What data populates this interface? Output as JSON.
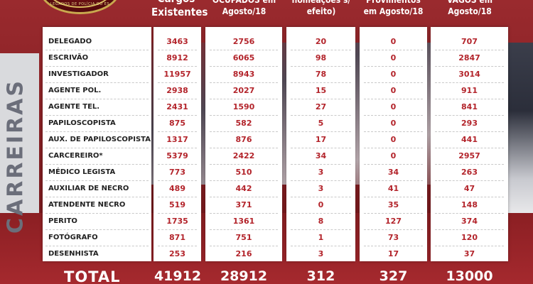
{
  "headers": {
    "cargos": [
      "Cargos",
      "Existentes"
    ],
    "ocupados": [
      "OCUPADOS em",
      "Agosto/18"
    ],
    "nomeacoes": [
      "nomeações s/",
      "efeito)"
    ],
    "provimentos": [
      "Provimentos",
      "em Agosto/18"
    ],
    "vagos": [
      "VAGOS em",
      "Agosto/18"
    ]
  },
  "emblem": {
    "text": "LEGADOS DE POLÍCIA DO ES"
  },
  "side_label": "CARREIRAS",
  "rows": [
    {
      "label": "DELEGADO",
      "cargos": "3463",
      "ocupados": "2756",
      "nomeacoes": "20",
      "provimentos": "0",
      "vagos": "707"
    },
    {
      "label": "ESCRIVÃO",
      "cargos": "8912",
      "ocupados": "6065",
      "nomeacoes": "98",
      "provimentos": "0",
      "vagos": "2847"
    },
    {
      "label": "INVESTIGADOR",
      "cargos": "11957",
      "ocupados": "8943",
      "nomeacoes": "78",
      "provimentos": "0",
      "vagos": "3014"
    },
    {
      "label": "AGENTE POL.",
      "cargos": "2938",
      "ocupados": "2027",
      "nomeacoes": "15",
      "provimentos": "0",
      "vagos": "911"
    },
    {
      "label": "AGENTE TEL.",
      "cargos": "2431",
      "ocupados": "1590",
      "nomeacoes": "27",
      "provimentos": "0",
      "vagos": "841"
    },
    {
      "label": "PAPILOSCOPISTA",
      "cargos": "875",
      "ocupados": "582",
      "nomeacoes": "5",
      "provimentos": "0",
      "vagos": "293"
    },
    {
      "label": "AUX. DE PAPILOSCOPISTA",
      "cargos": "1317",
      "ocupados": "876",
      "nomeacoes": "17",
      "provimentos": "0",
      "vagos": "441"
    },
    {
      "label": "CARCEREIRO*",
      "cargos": "5379",
      "ocupados": "2422",
      "nomeacoes": "34",
      "provimentos": "0",
      "vagos": "2957"
    },
    {
      "label": "MÉDICO LEGISTA",
      "cargos": "773",
      "ocupados": "510",
      "nomeacoes": "3",
      "provimentos": "34",
      "vagos": "263"
    },
    {
      "label": "AUXILIAR DE NECRO",
      "cargos": "489",
      "ocupados": "442",
      "nomeacoes": "3",
      "provimentos": "41",
      "vagos": "47"
    },
    {
      "label": "ATENDENTE NECRO",
      "cargos": "519",
      "ocupados": "371",
      "nomeacoes": "0",
      "provimentos": "35",
      "vagos": "148"
    },
    {
      "label": "PERITO",
      "cargos": "1735",
      "ocupados": "1361",
      "nomeacoes": "8",
      "provimentos": "127",
      "vagos": "374"
    },
    {
      "label": "FOTÓGRAFO",
      "cargos": "871",
      "ocupados": "751",
      "nomeacoes": "1",
      "provimentos": "73",
      "vagos": "120"
    },
    {
      "label": "DESENHISTA",
      "cargos": "253",
      "ocupados": "216",
      "nomeacoes": "3",
      "provimentos": "17",
      "vagos": "37"
    }
  ],
  "total": {
    "label": "TOTAL",
    "cargos": "41912",
    "ocupados": "28912",
    "nomeacoes": "312",
    "provimentos": "327",
    "vagos": "13000"
  },
  "colors": {
    "accent_red": "#b3242b",
    "background_red": "#8a1e22",
    "panel": "#ffffff",
    "gray_band": "#3a3d49"
  }
}
